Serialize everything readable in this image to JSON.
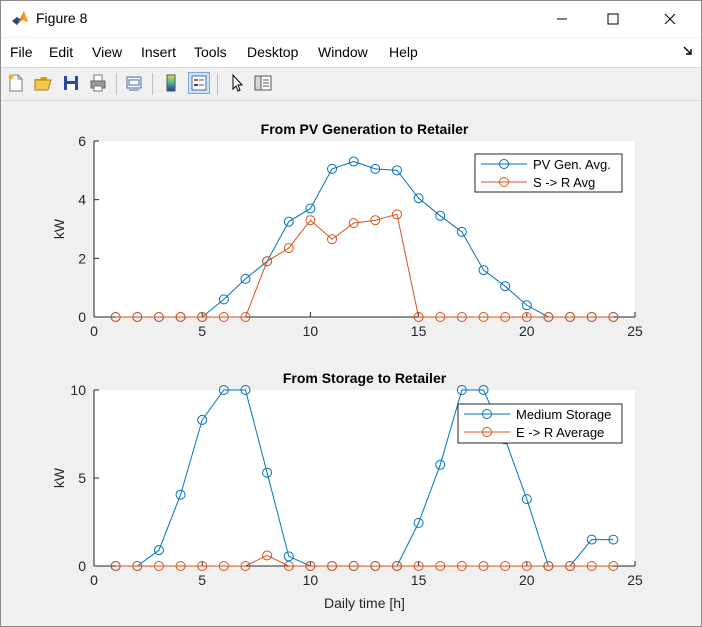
{
  "window": {
    "title": "Figure 8",
    "controls": [
      "minimize",
      "maximize",
      "close"
    ]
  },
  "menu": {
    "items": [
      "File",
      "Edit",
      "View",
      "Insert",
      "Tools",
      "Desktop",
      "Window",
      "Help"
    ]
  },
  "toolbar": {
    "buttons": [
      "new-figure-icon",
      "open-file-icon",
      "save-icon",
      "print-icon",
      "link-plot-icon",
      "insert-colorbar-icon",
      "insert-legend-icon",
      "edit-plot-icon",
      "property-inspector-icon"
    ]
  },
  "colors": {
    "series1": "#0072BD",
    "series2": "#D95319",
    "axes_bg": "#ffffff",
    "figure_bg": "#f0f0f0"
  },
  "chart_data": [
    {
      "type": "line",
      "title": "From PV Generation to Retailer",
      "xlabel": "",
      "ylabel": "kW",
      "xlim": [
        0,
        25
      ],
      "ylim": [
        0,
        6
      ],
      "xticks": [
        "0",
        "5",
        "10",
        "15",
        "20",
        "25"
      ],
      "yticks": [
        "0",
        "2",
        "4",
        "6"
      ],
      "grid": false,
      "legend_location": "top-right",
      "x": [
        1,
        2,
        3,
        4,
        5,
        6,
        7,
        8,
        9,
        10,
        11,
        12,
        13,
        14,
        15,
        16,
        17,
        18,
        19,
        20,
        21,
        22,
        23,
        24
      ],
      "series": [
        {
          "name": "PV Gen. Avg.",
          "color": "#0072BD",
          "values": [
            0,
            0,
            0,
            0,
            0,
            0.6,
            1.3,
            1.9,
            3.25,
            3.7,
            5.05,
            5.3,
            5.05,
            5.0,
            4.05,
            3.45,
            2.9,
            1.6,
            1.05,
            0.4,
            0,
            0,
            0,
            0
          ]
        },
        {
          "name": "S -> R Avg",
          "color": "#D95319",
          "values": [
            0,
            0,
            0,
            0,
            0,
            0,
            0,
            1.9,
            2.35,
            3.3,
            2.65,
            3.2,
            3.3,
            3.5,
            0,
            0,
            0,
            0,
            0,
            0,
            0,
            0,
            0,
            0
          ]
        }
      ]
    },
    {
      "type": "line",
      "title": "From Storage to Retailer",
      "xlabel": "Daily time [h]",
      "ylabel": "kW",
      "xlim": [
        0,
        25
      ],
      "ylim": [
        0,
        10
      ],
      "xticks": [
        "0",
        "5",
        "10",
        "15",
        "20",
        "25"
      ],
      "yticks": [
        "0",
        "5",
        "10"
      ],
      "grid": false,
      "legend_location": "top-right",
      "x": [
        1,
        2,
        3,
        4,
        5,
        6,
        7,
        8,
        9,
        10,
        11,
        12,
        13,
        14,
        15,
        16,
        17,
        18,
        19,
        20,
        21,
        22,
        23,
        24
      ],
      "series": [
        {
          "name": "Medium Storage",
          "color": "#0072BD",
          "values": [
            0,
            0,
            0.9,
            4.05,
            8.3,
            10,
            10,
            5.3,
            0.55,
            0,
            0,
            0,
            0,
            0,
            2.45,
            5.75,
            10,
            10,
            7.2,
            3.8,
            0,
            0,
            1.5,
            1.5
          ]
        },
        {
          "name": "E -> R Average",
          "color": "#D95319",
          "values": [
            0,
            0,
            0,
            0,
            0,
            0,
            0,
            0.6,
            0,
            0,
            0,
            0,
            0,
            0,
            0,
            0,
            0,
            0,
            0,
            0,
            0,
            0,
            0,
            0
          ]
        }
      ]
    }
  ]
}
